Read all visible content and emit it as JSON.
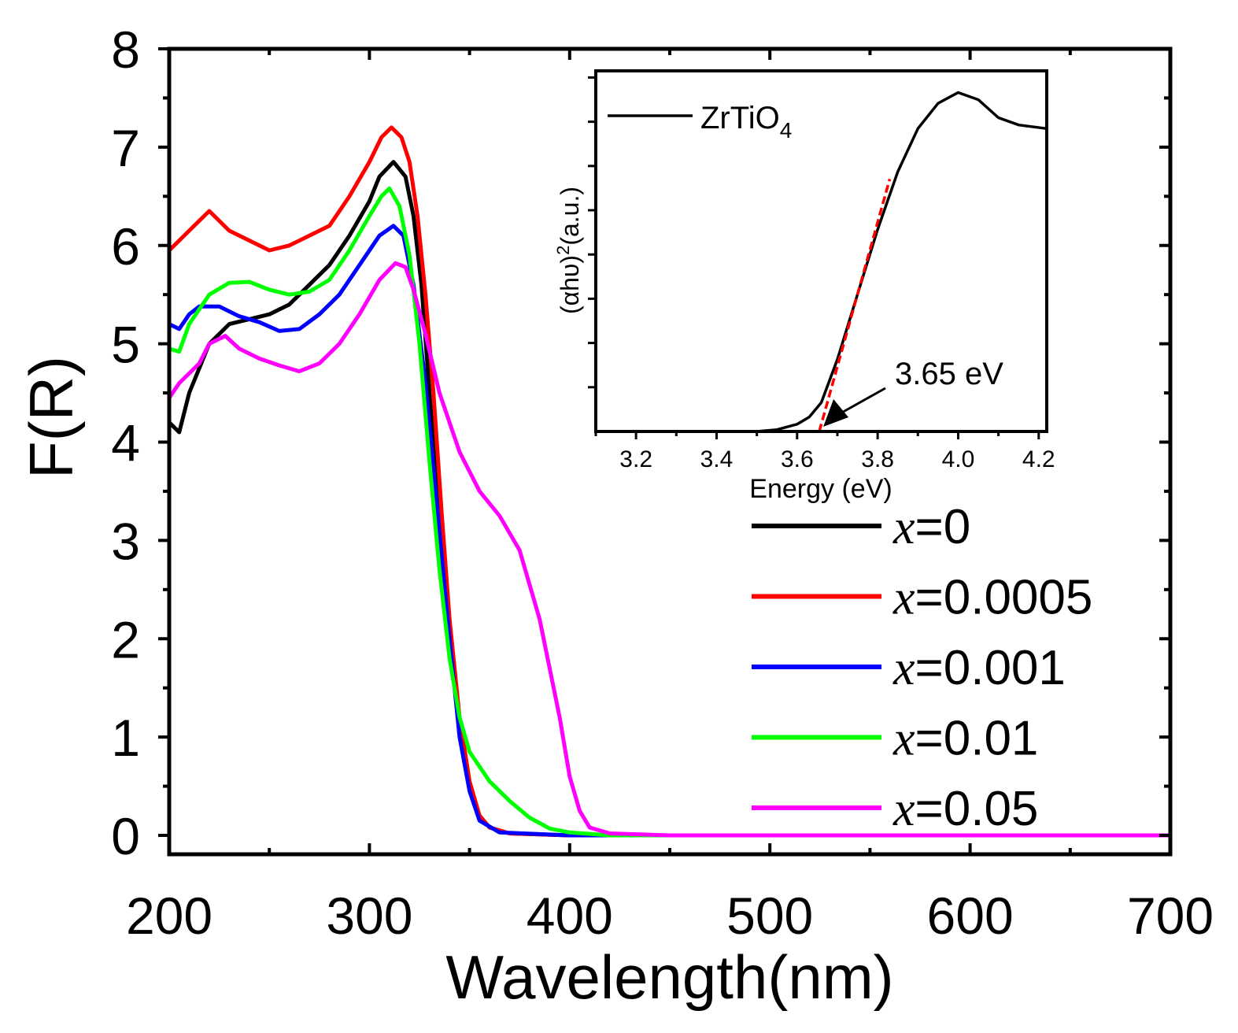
{
  "chart_data": [
    {
      "type": "line",
      "xlabel": "Wavelength(nm)",
      "ylabel": "F(R)",
      "xlim": [
        200,
        700
      ],
      "ylim": [
        0,
        8
      ],
      "xticks": [
        200,
        300,
        400,
        500,
        600,
        700
      ],
      "yticks": [
        0,
        1,
        2,
        3,
        4,
        5,
        6,
        7,
        8
      ],
      "grid": false,
      "legend_placement": "bottom-right",
      "series": [
        {
          "name": "x=0",
          "prefix": "x",
          "suffix": "=0",
          "color": "#000000",
          "x": [
            200,
            205,
            210,
            220,
            230,
            240,
            250,
            260,
            270,
            280,
            290,
            300,
            305,
            312,
            318,
            322,
            326,
            330,
            335,
            340,
            345,
            350,
            355,
            360,
            370,
            400,
            700
          ],
          "y": [
            4.2,
            4.1,
            4.5,
            5.0,
            5.2,
            5.25,
            5.3,
            5.4,
            5.6,
            5.8,
            6.1,
            6.45,
            6.7,
            6.85,
            6.7,
            6.3,
            5.6,
            4.5,
            3.2,
            2.0,
            1.1,
            0.5,
            0.2,
            0.08,
            0.02,
            0,
            0
          ]
        },
        {
          "name": "x=0.0005",
          "prefix": "x",
          "suffix": "=0.0005",
          "color": "#ff0000",
          "x": [
            200,
            210,
            220,
            230,
            240,
            250,
            260,
            270,
            280,
            290,
            300,
            306,
            311,
            316,
            320,
            324,
            328,
            332,
            336,
            340,
            345,
            350,
            355,
            360,
            370,
            400,
            700
          ],
          "y": [
            5.95,
            6.15,
            6.35,
            6.15,
            6.05,
            5.95,
            6.0,
            6.1,
            6.2,
            6.5,
            6.85,
            7.1,
            7.2,
            7.1,
            6.85,
            6.3,
            5.5,
            4.5,
            3.3,
            2.2,
            1.2,
            0.55,
            0.2,
            0.08,
            0.02,
            0,
            0
          ]
        },
        {
          "name": "x=0.001",
          "prefix": "x",
          "suffix": "=0.001",
          "color": "#0000ff",
          "x": [
            200,
            205,
            210,
            215,
            225,
            235,
            245,
            255,
            265,
            275,
            285,
            295,
            305,
            312,
            317,
            322,
            328,
            334,
            340,
            345,
            350,
            355,
            365,
            400,
            700
          ],
          "y": [
            5.2,
            5.15,
            5.3,
            5.38,
            5.38,
            5.28,
            5.22,
            5.13,
            5.15,
            5.3,
            5.5,
            5.8,
            6.1,
            6.2,
            6.1,
            5.6,
            4.6,
            3.3,
            2.0,
            1.0,
            0.45,
            0.15,
            0.03,
            0,
            0
          ]
        },
        {
          "name": "x=0.01",
          "prefix": "x",
          "suffix": "=0.01",
          "color": "#00ff00",
          "x": [
            200,
            205,
            210,
            220,
            230,
            240,
            250,
            260,
            270,
            280,
            290,
            300,
            306,
            310,
            315,
            320,
            325,
            330,
            335,
            340,
            345,
            350,
            360,
            370,
            380,
            390,
            400,
            420,
            700
          ],
          "y": [
            4.95,
            4.92,
            5.2,
            5.5,
            5.62,
            5.63,
            5.55,
            5.5,
            5.53,
            5.65,
            5.95,
            6.3,
            6.5,
            6.58,
            6.4,
            5.9,
            5.0,
            3.8,
            2.7,
            1.8,
            1.2,
            0.85,
            0.55,
            0.35,
            0.18,
            0.07,
            0.03,
            0,
            0
          ]
        },
        {
          "name": "x=0.05",
          "prefix": "x",
          "suffix": "=0.05",
          "color": "#ff00ff",
          "x": [
            200,
            205,
            215,
            220,
            228,
            235,
            245,
            255,
            265,
            275,
            285,
            295,
            305,
            313,
            318,
            322,
            328,
            335,
            345,
            355,
            365,
            375,
            385,
            395,
            400,
            405,
            410,
            420,
            450,
            700
          ],
          "y": [
            4.45,
            4.6,
            4.8,
            5.0,
            5.08,
            4.95,
            4.85,
            4.78,
            4.72,
            4.8,
            5.0,
            5.3,
            5.65,
            5.82,
            5.78,
            5.55,
            5.1,
            4.5,
            3.9,
            3.5,
            3.25,
            2.9,
            2.2,
            1.2,
            0.6,
            0.25,
            0.08,
            0.02,
            0,
            0
          ]
        }
      ]
    },
    {
      "type": "line",
      "xlabel": "Energy (eV)",
      "ylabel": "(αhυ)²(a.u.)",
      "ylabel_main": "(αhυ)",
      "ylabel_sup": "2",
      "ylabel_tail": "(a.u.)",
      "xlim": [
        3.1,
        4.22
      ],
      "ylim": [
        0,
        100
      ],
      "xticks": [
        "3.2",
        "3.4",
        "3.6",
        "3.8",
        "4.0",
        "4.2"
      ],
      "y_tick_labels": false,
      "series": [
        {
          "name": "ZrTiO4",
          "label_main": "ZrTiO",
          "label_sub": "4",
          "color": "#000000",
          "x": [
            3.1,
            3.5,
            3.55,
            3.6,
            3.63,
            3.66,
            3.7,
            3.75,
            3.8,
            3.85,
            3.9,
            3.95,
            4.0,
            4.05,
            4.1,
            4.15,
            4.22
          ],
          "y": [
            0,
            0,
            0.5,
            2,
            4,
            8,
            20,
            38,
            56,
            72,
            84,
            91,
            94,
            92,
            87,
            85,
            84
          ]
        }
      ],
      "fit_line": {
        "color": "#ff0000",
        "style": "dashed",
        "x": [
          3.655,
          3.83
        ],
        "y": [
          0,
          70
        ]
      },
      "annotation": {
        "text": "3.65 eV",
        "points_to_x": 3.665
      }
    }
  ]
}
